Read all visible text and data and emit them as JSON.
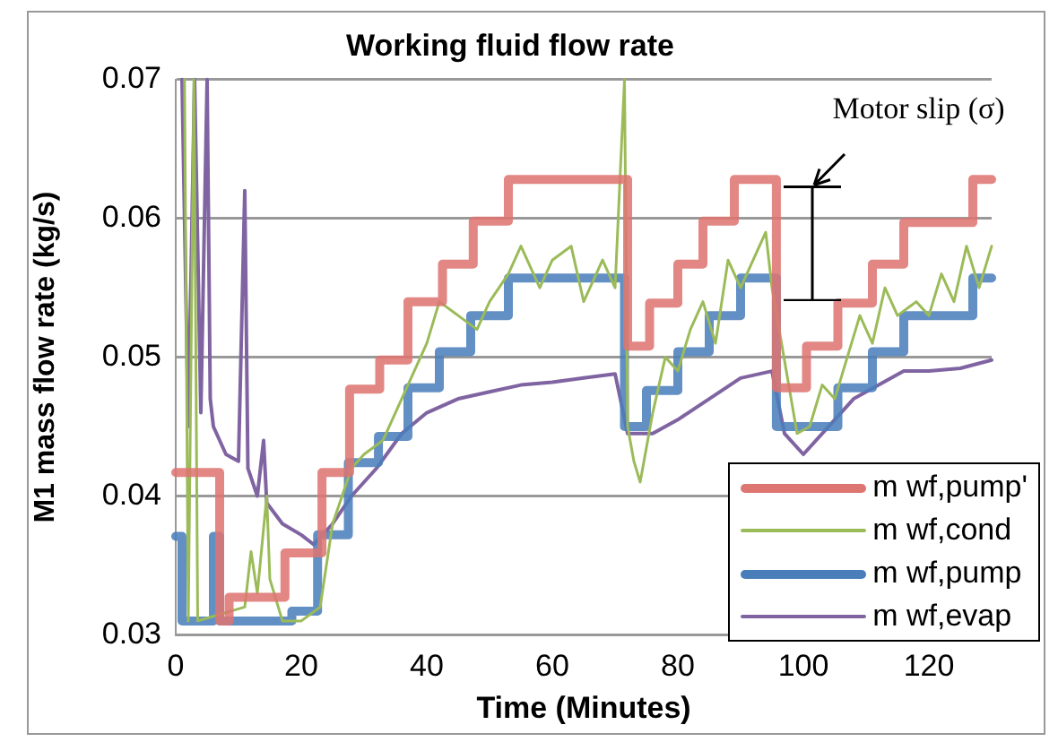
{
  "chart_data": {
    "type": "line",
    "title": "Working fluid flow rate",
    "xlabel": "Time (Minutes)",
    "ylabel": "M1 mass flow rate (kg/s)",
    "xlim": [
      0,
      130
    ],
    "xticks": [
      0,
      20,
      40,
      60,
      80,
      100,
      120
    ],
    "ylim": [
      0.03,
      0.07
    ],
    "yticks": [
      0.03,
      0.04,
      0.05,
      0.06,
      0.07
    ],
    "grid": "y",
    "legend": "bottom right",
    "marker": "none",
    "annotations": [
      "Motor slip (σ)"
    ],
    "series": [
      {
        "name": "m wf,pump'",
        "type": "step",
        "color": "#dd7571",
        "x": [
          0,
          7,
          8.5,
          17.4,
          23.3,
          27.7,
          32.5,
          37,
          42.5,
          47.4,
          53,
          72,
          75.5,
          80,
          84,
          89,
          95.7,
          100.5,
          105.5,
          111,
          116,
          127,
          130
        ],
        "values": [
          0.0417,
          0.0417,
          0.031,
          0.0327,
          0.0359,
          0.0417,
          0.0477,
          0.0498,
          0.054,
          0.0567,
          0.0598,
          0.0628,
          0.0508,
          0.0539,
          0.0567,
          0.0598,
          0.0628,
          0.0478,
          0.0508,
          0.0539,
          0.0567,
          0.0597,
          0.0628
        ]
      },
      {
        "name": "m wf,cond",
        "color": "#9bbb59",
        "x": [
          1.4,
          2,
          2.9,
          3.5,
          11,
          12,
          13,
          14.5,
          15,
          17,
          20,
          23,
          25,
          28,
          30,
          33,
          36,
          38,
          40,
          42,
          45,
          48,
          50,
          53,
          55,
          58,
          60,
          63,
          65,
          68,
          70,
          71.5,
          72,
          73,
          74,
          76,
          78,
          80,
          82,
          84,
          86,
          88,
          90,
          92,
          94,
          95,
          99,
          101,
          103,
          105,
          107,
          109,
          111,
          113,
          115,
          118,
          120,
          122,
          124,
          126,
          128,
          130
        ],
        "values": [
          0.07,
          0.031,
          0.07,
          0.031,
          0.032,
          0.036,
          0.033,
          0.04,
          0.034,
          0.031,
          0.031,
          0.032,
          0.038,
          0.042,
          0.043,
          0.044,
          0.047,
          0.049,
          0.051,
          0.054,
          0.053,
          0.052,
          0.054,
          0.056,
          0.058,
          0.055,
          0.057,
          0.058,
          0.054,
          0.057,
          0.055,
          0.07,
          0.045,
          0.0425,
          0.041,
          0.046,
          0.05,
          0.049,
          0.052,
          0.054,
          0.051,
          0.057,
          0.055,
          0.057,
          0.059,
          0.055,
          0.0445,
          0.045,
          0.048,
          0.047,
          0.05,
          0.053,
          0.051,
          0.055,
          0.053,
          0.054,
          0.053,
          0.056,
          0.054,
          0.058,
          0.055,
          0.058
        ]
      },
      {
        "name": "m wf,pump",
        "type": "step",
        "color": "#4a7ebb",
        "x": [
          0,
          1,
          6,
          7,
          18.5,
          22.6,
          27.5,
          32.3,
          37,
          42,
          47,
          53,
          71.5,
          75,
          80,
          85,
          90,
          95.7,
          100.5,
          105.5,
          111,
          116,
          127,
          130
        ],
        "values": [
          0.0371,
          0.0371,
          0.031,
          0.0371,
          0.031,
          0.0317,
          0.0372,
          0.0424,
          0.0443,
          0.0478,
          0.0504,
          0.053,
          0.0557,
          0.045,
          0.0476,
          0.0504,
          0.053,
          0.0557,
          0.045,
          0.045,
          0.0478,
          0.0504,
          0.053,
          0.0557
        ]
      },
      {
        "name": "m wf,evap",
        "color": "#8064a2",
        "x": [
          1,
          2,
          3,
          4,
          5,
          5.5,
          6,
          8,
          10,
          11,
          11.5,
          13,
          14,
          14.5,
          17,
          20,
          22,
          25,
          28,
          32,
          36,
          40,
          45,
          50,
          55,
          60,
          65,
          70,
          72,
          76,
          80,
          85,
          90,
          95,
          97,
          100,
          104,
          108,
          112,
          116,
          120,
          125,
          130
        ],
        "values": [
          0.07,
          0.045,
          0.07,
          0.046,
          0.07,
          0.047,
          0.045,
          0.043,
          0.0425,
          0.062,
          0.042,
          0.04,
          0.044,
          0.0395,
          0.038,
          0.0372,
          0.0365,
          0.038,
          0.04,
          0.042,
          0.0445,
          0.046,
          0.047,
          0.0475,
          0.048,
          0.0482,
          0.0485,
          0.0488,
          0.0445,
          0.0445,
          0.0455,
          0.047,
          0.0485,
          0.049,
          0.0445,
          0.043,
          0.045,
          0.047,
          0.048,
          0.049,
          0.049,
          0.0492,
          0.0498
        ]
      }
    ]
  }
}
